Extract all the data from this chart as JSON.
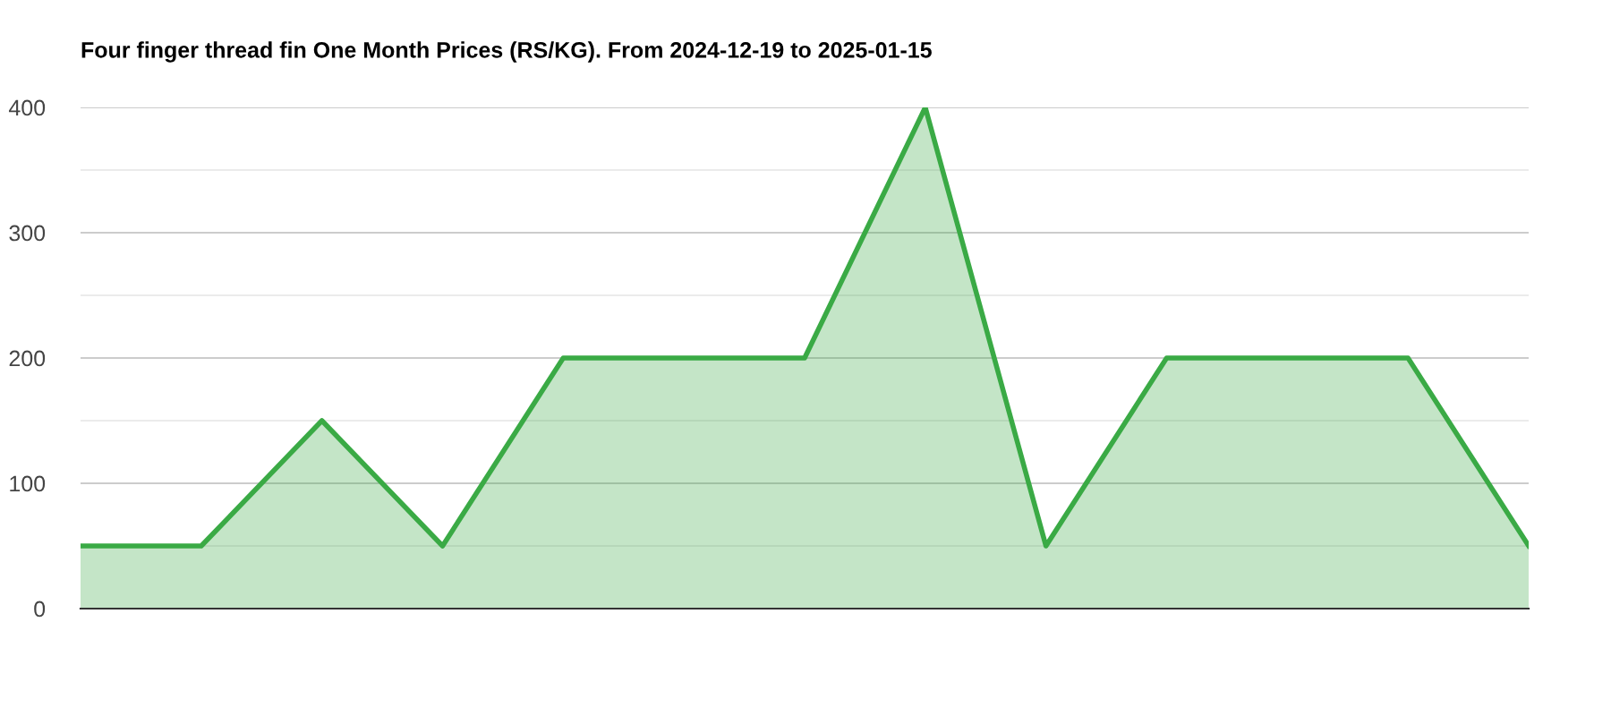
{
  "chart_data": {
    "type": "area",
    "title": "Four finger thread fin One Month Prices (RS/KG). From 2024-12-19 to 2025-01-15",
    "categories": [
      null,
      null,
      null,
      null,
      null,
      null,
      null,
      null,
      null,
      null,
      null,
      null,
      null
    ],
    "series": [
      {
        "color": "#3aaa45",
        "values": [
          50,
          50,
          150,
          50,
          200,
          200,
          200,
          400,
          50,
          200,
          200,
          200,
          50
        ]
      }
    ],
    "ylim": [
      0,
      400
    ],
    "yticks": [
      0,
      {
        "value": 50,
        "label": null
      },
      100,
      {
        "value": 150,
        "label": null
      },
      200,
      {
        "value": 250,
        "label": null
      },
      300,
      {
        "value": 350,
        "label": null
      },
      400
    ],
    "grid": "y",
    "legend": false,
    "marker": "none",
    "line_style": "solid"
  }
}
